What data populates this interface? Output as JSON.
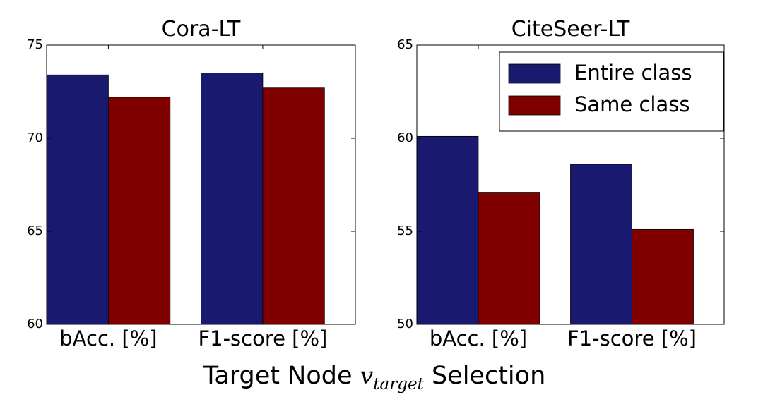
{
  "chart_data": [
    {
      "type": "bar",
      "title": "Cora-LT",
      "categories": [
        "bAcc. [%]",
        "F1-score [%]"
      ],
      "series": [
        {
          "name": "Entire class",
          "color": "#191970",
          "values": [
            73.4,
            73.5
          ]
        },
        {
          "name": "Same class",
          "color": "#800000",
          "values": [
            72.2,
            72.7
          ]
        }
      ],
      "ylim": [
        60,
        75
      ],
      "yticks": [
        60,
        65,
        70,
        75
      ],
      "legend": null,
      "grid": false
    },
    {
      "type": "bar",
      "title": "CiteSeer-LT",
      "categories": [
        "bAcc. [%]",
        "F1-score [%]"
      ],
      "series": [
        {
          "name": "Entire class",
          "color": "#191970",
          "values": [
            60.1,
            58.6
          ]
        },
        {
          "name": "Same class",
          "color": "#800000",
          "values": [
            57.1,
            55.1
          ]
        }
      ],
      "ylim": [
        50,
        65
      ],
      "yticks": [
        50,
        55,
        60,
        65
      ],
      "legend": "top-right",
      "grid": false
    }
  ],
  "figure": {
    "xlabel_prefix": "Target Node ",
    "xlabel_var": "v",
    "xlabel_subscript": "target",
    "xlabel_suffix": " Selection"
  }
}
